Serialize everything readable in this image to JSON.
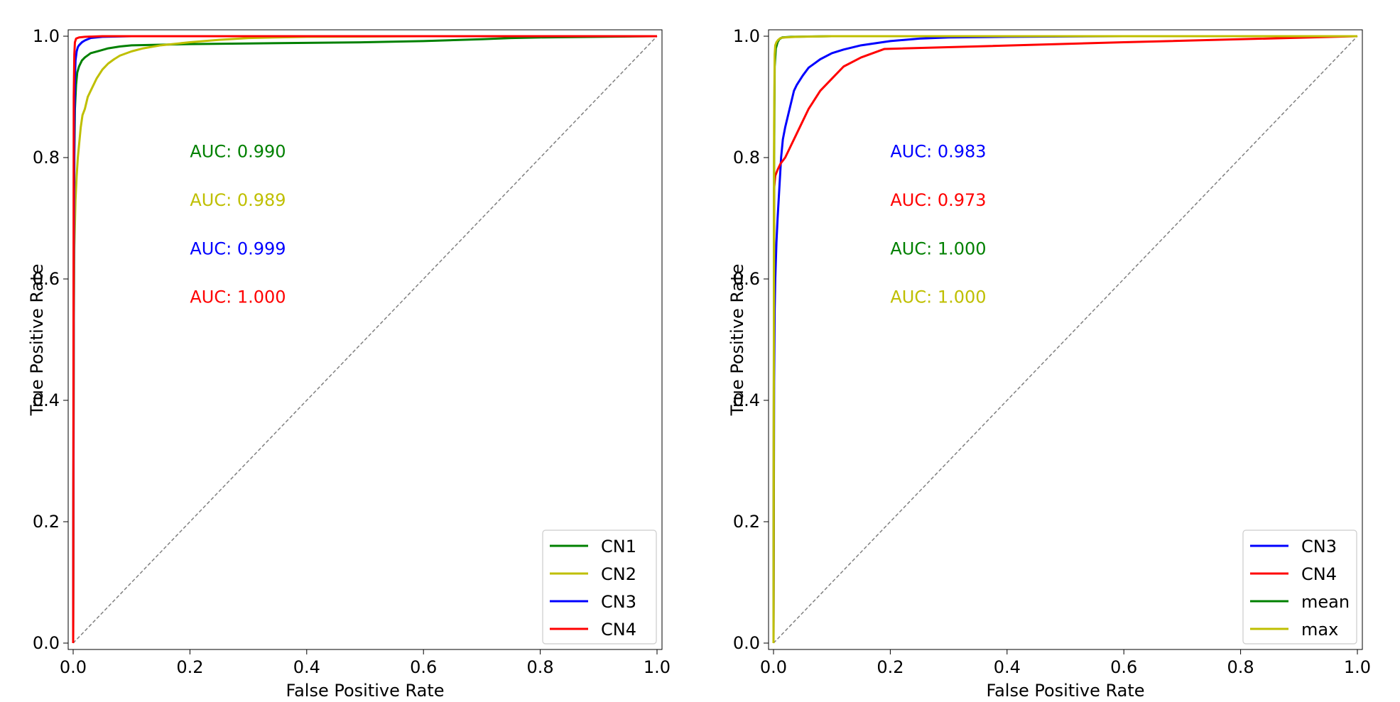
{
  "colors": {
    "CN1": "#008000",
    "CN2": "#bfbf00",
    "CN3": "#0000ff",
    "CN4": "#ff0000",
    "mean": "#008000",
    "max": "#bfbf00",
    "diagonal": "#808080"
  },
  "chart_data": [
    {
      "type": "line",
      "title": "",
      "xlabel": "False Positive Rate",
      "ylabel": "True Positive Rate",
      "xlim": [
        0.0,
        1.0
      ],
      "ylim": [
        0.0,
        1.0
      ],
      "xticks": [
        "0.0",
        "0.2",
        "0.4",
        "0.6",
        "0.8",
        "1.0"
      ],
      "yticks": [
        "0.0",
        "0.2",
        "0.4",
        "0.6",
        "0.8",
        "1.0"
      ],
      "grid": false,
      "legend_position": "bottom-right",
      "reference_line": {
        "x": [
          0,
          1
        ],
        "y": [
          0,
          1
        ],
        "style": "dashed"
      },
      "annotations": [
        {
          "text": "AUC: 0.990",
          "series": "CN1",
          "x": 0.2,
          "y": 0.81
        },
        {
          "text": "AUC: 0.989",
          "series": "CN2",
          "x": 0.2,
          "y": 0.73
        },
        {
          "text": "AUC: 0.999",
          "series": "CN3",
          "x": 0.2,
          "y": 0.65
        },
        {
          "text": "AUC: 1.000",
          "series": "CN4",
          "x": 0.2,
          "y": 0.57
        }
      ],
      "series": [
        {
          "name": "CN1",
          "x": [
            0,
            0.001,
            0.002,
            0.003,
            0.005,
            0.007,
            0.01,
            0.015,
            0.02,
            0.03,
            0.045,
            0.06,
            0.08,
            0.1,
            0.15,
            0.2,
            0.3,
            0.4,
            0.5,
            0.6,
            0.7,
            0.75,
            0.8,
            0.9,
            1.0
          ],
          "y": [
            0,
            0.5,
            0.8,
            0.88,
            0.92,
            0.94,
            0.95,
            0.96,
            0.965,
            0.972,
            0.976,
            0.98,
            0.983,
            0.985,
            0.986,
            0.987,
            0.988,
            0.989,
            0.99,
            0.992,
            0.995,
            0.997,
            0.998,
            0.999,
            1.0
          ]
        },
        {
          "name": "CN2",
          "x": [
            0,
            0.001,
            0.002,
            0.004,
            0.006,
            0.008,
            0.01,
            0.013,
            0.016,
            0.02,
            0.025,
            0.03,
            0.04,
            0.05,
            0.06,
            0.07,
            0.08,
            0.1,
            0.12,
            0.15,
            0.2,
            0.25,
            0.3,
            0.4,
            0.6,
            1.0
          ],
          "y": [
            0,
            0.5,
            0.65,
            0.73,
            0.77,
            0.8,
            0.82,
            0.85,
            0.87,
            0.88,
            0.9,
            0.91,
            0.93,
            0.945,
            0.955,
            0.962,
            0.968,
            0.975,
            0.98,
            0.985,
            0.99,
            0.994,
            0.997,
            0.999,
            1.0,
            1.0
          ]
        },
        {
          "name": "CN3",
          "x": [
            0,
            0.001,
            0.002,
            0.003,
            0.004,
            0.006,
            0.008,
            0.01,
            0.015,
            0.02,
            0.03,
            0.05,
            0.1,
            0.3,
            1.0
          ],
          "y": [
            0,
            0.6,
            0.85,
            0.93,
            0.96,
            0.975,
            0.982,
            0.985,
            0.99,
            0.993,
            0.997,
            0.999,
            1.0,
            1.0,
            1.0
          ]
        },
        {
          "name": "CN4",
          "x": [
            0,
            0.001,
            0.002,
            0.003,
            0.005,
            0.01,
            0.02,
            0.05,
            0.1,
            1.0
          ],
          "y": [
            0,
            0.9,
            0.97,
            0.99,
            0.996,
            0.998,
            0.999,
            1.0,
            1.0,
            1.0
          ]
        }
      ]
    },
    {
      "type": "line",
      "title": "",
      "xlabel": "False Positive Rate",
      "ylabel": "True Positive Rate",
      "xlim": [
        0.0,
        1.0
      ],
      "ylim": [
        0.0,
        1.0
      ],
      "xticks": [
        "0.0",
        "0.2",
        "0.4",
        "0.6",
        "0.8",
        "1.0"
      ],
      "yticks": [
        "0.0",
        "0.2",
        "0.4",
        "0.6",
        "0.8",
        "1.0"
      ],
      "grid": false,
      "legend_position": "bottom-right",
      "reference_line": {
        "x": [
          0,
          1
        ],
        "y": [
          0,
          1
        ],
        "style": "dashed"
      },
      "annotations": [
        {
          "text": "AUC: 0.983",
          "series": "CN3",
          "x": 0.2,
          "y": 0.81
        },
        {
          "text": "AUC: 0.973",
          "series": "CN4",
          "x": 0.2,
          "y": 0.73
        },
        {
          "text": "AUC: 1.000",
          "series": "mean",
          "x": 0.2,
          "y": 0.65
        },
        {
          "text": "AUC: 1.000",
          "series": "max",
          "x": 0.2,
          "y": 0.57
        }
      ],
      "series": [
        {
          "name": "CN3",
          "x": [
            0,
            0.001,
            0.002,
            0.003,
            0.005,
            0.007,
            0.01,
            0.013,
            0.016,
            0.02,
            0.025,
            0.03,
            0.035,
            0.04,
            0.05,
            0.06,
            0.08,
            0.1,
            0.12,
            0.15,
            0.2,
            0.25,
            0.3,
            0.4,
            0.6,
            1.0
          ],
          "y": [
            0,
            0.43,
            0.55,
            0.6,
            0.66,
            0.7,
            0.75,
            0.8,
            0.83,
            0.85,
            0.87,
            0.89,
            0.91,
            0.92,
            0.935,
            0.948,
            0.962,
            0.972,
            0.978,
            0.985,
            0.992,
            0.996,
            0.998,
            0.999,
            1.0,
            1.0
          ]
        },
        {
          "name": "CN4",
          "x": [
            0,
            0.001,
            0.003,
            0.007,
            0.012,
            0.02,
            0.03,
            0.04,
            0.05,
            0.06,
            0.08,
            0.1,
            0.12,
            0.15,
            0.19,
            0.6,
            1.0
          ],
          "y": [
            0,
            0.75,
            0.77,
            0.78,
            0.79,
            0.8,
            0.82,
            0.84,
            0.86,
            0.88,
            0.91,
            0.93,
            0.95,
            0.965,
            0.979,
            0.99,
            1.0
          ]
        },
        {
          "name": "mean",
          "x": [
            0,
            0.001,
            0.002,
            0.004,
            0.007,
            0.01,
            0.015,
            0.03,
            0.1,
            1.0
          ],
          "y": [
            0,
            0.8,
            0.95,
            0.98,
            0.99,
            0.995,
            0.998,
            0.999,
            1.0,
            1.0
          ]
        },
        {
          "name": "max",
          "x": [
            0,
            0.001,
            0.002,
            0.003,
            0.005,
            0.008,
            0.012,
            0.02,
            0.04,
            0.1,
            1.0
          ],
          "y": [
            0,
            0.85,
            0.97,
            0.985,
            0.99,
            0.994,
            0.997,
            0.998,
            0.999,
            1.0,
            1.0
          ]
        }
      ]
    }
  ]
}
